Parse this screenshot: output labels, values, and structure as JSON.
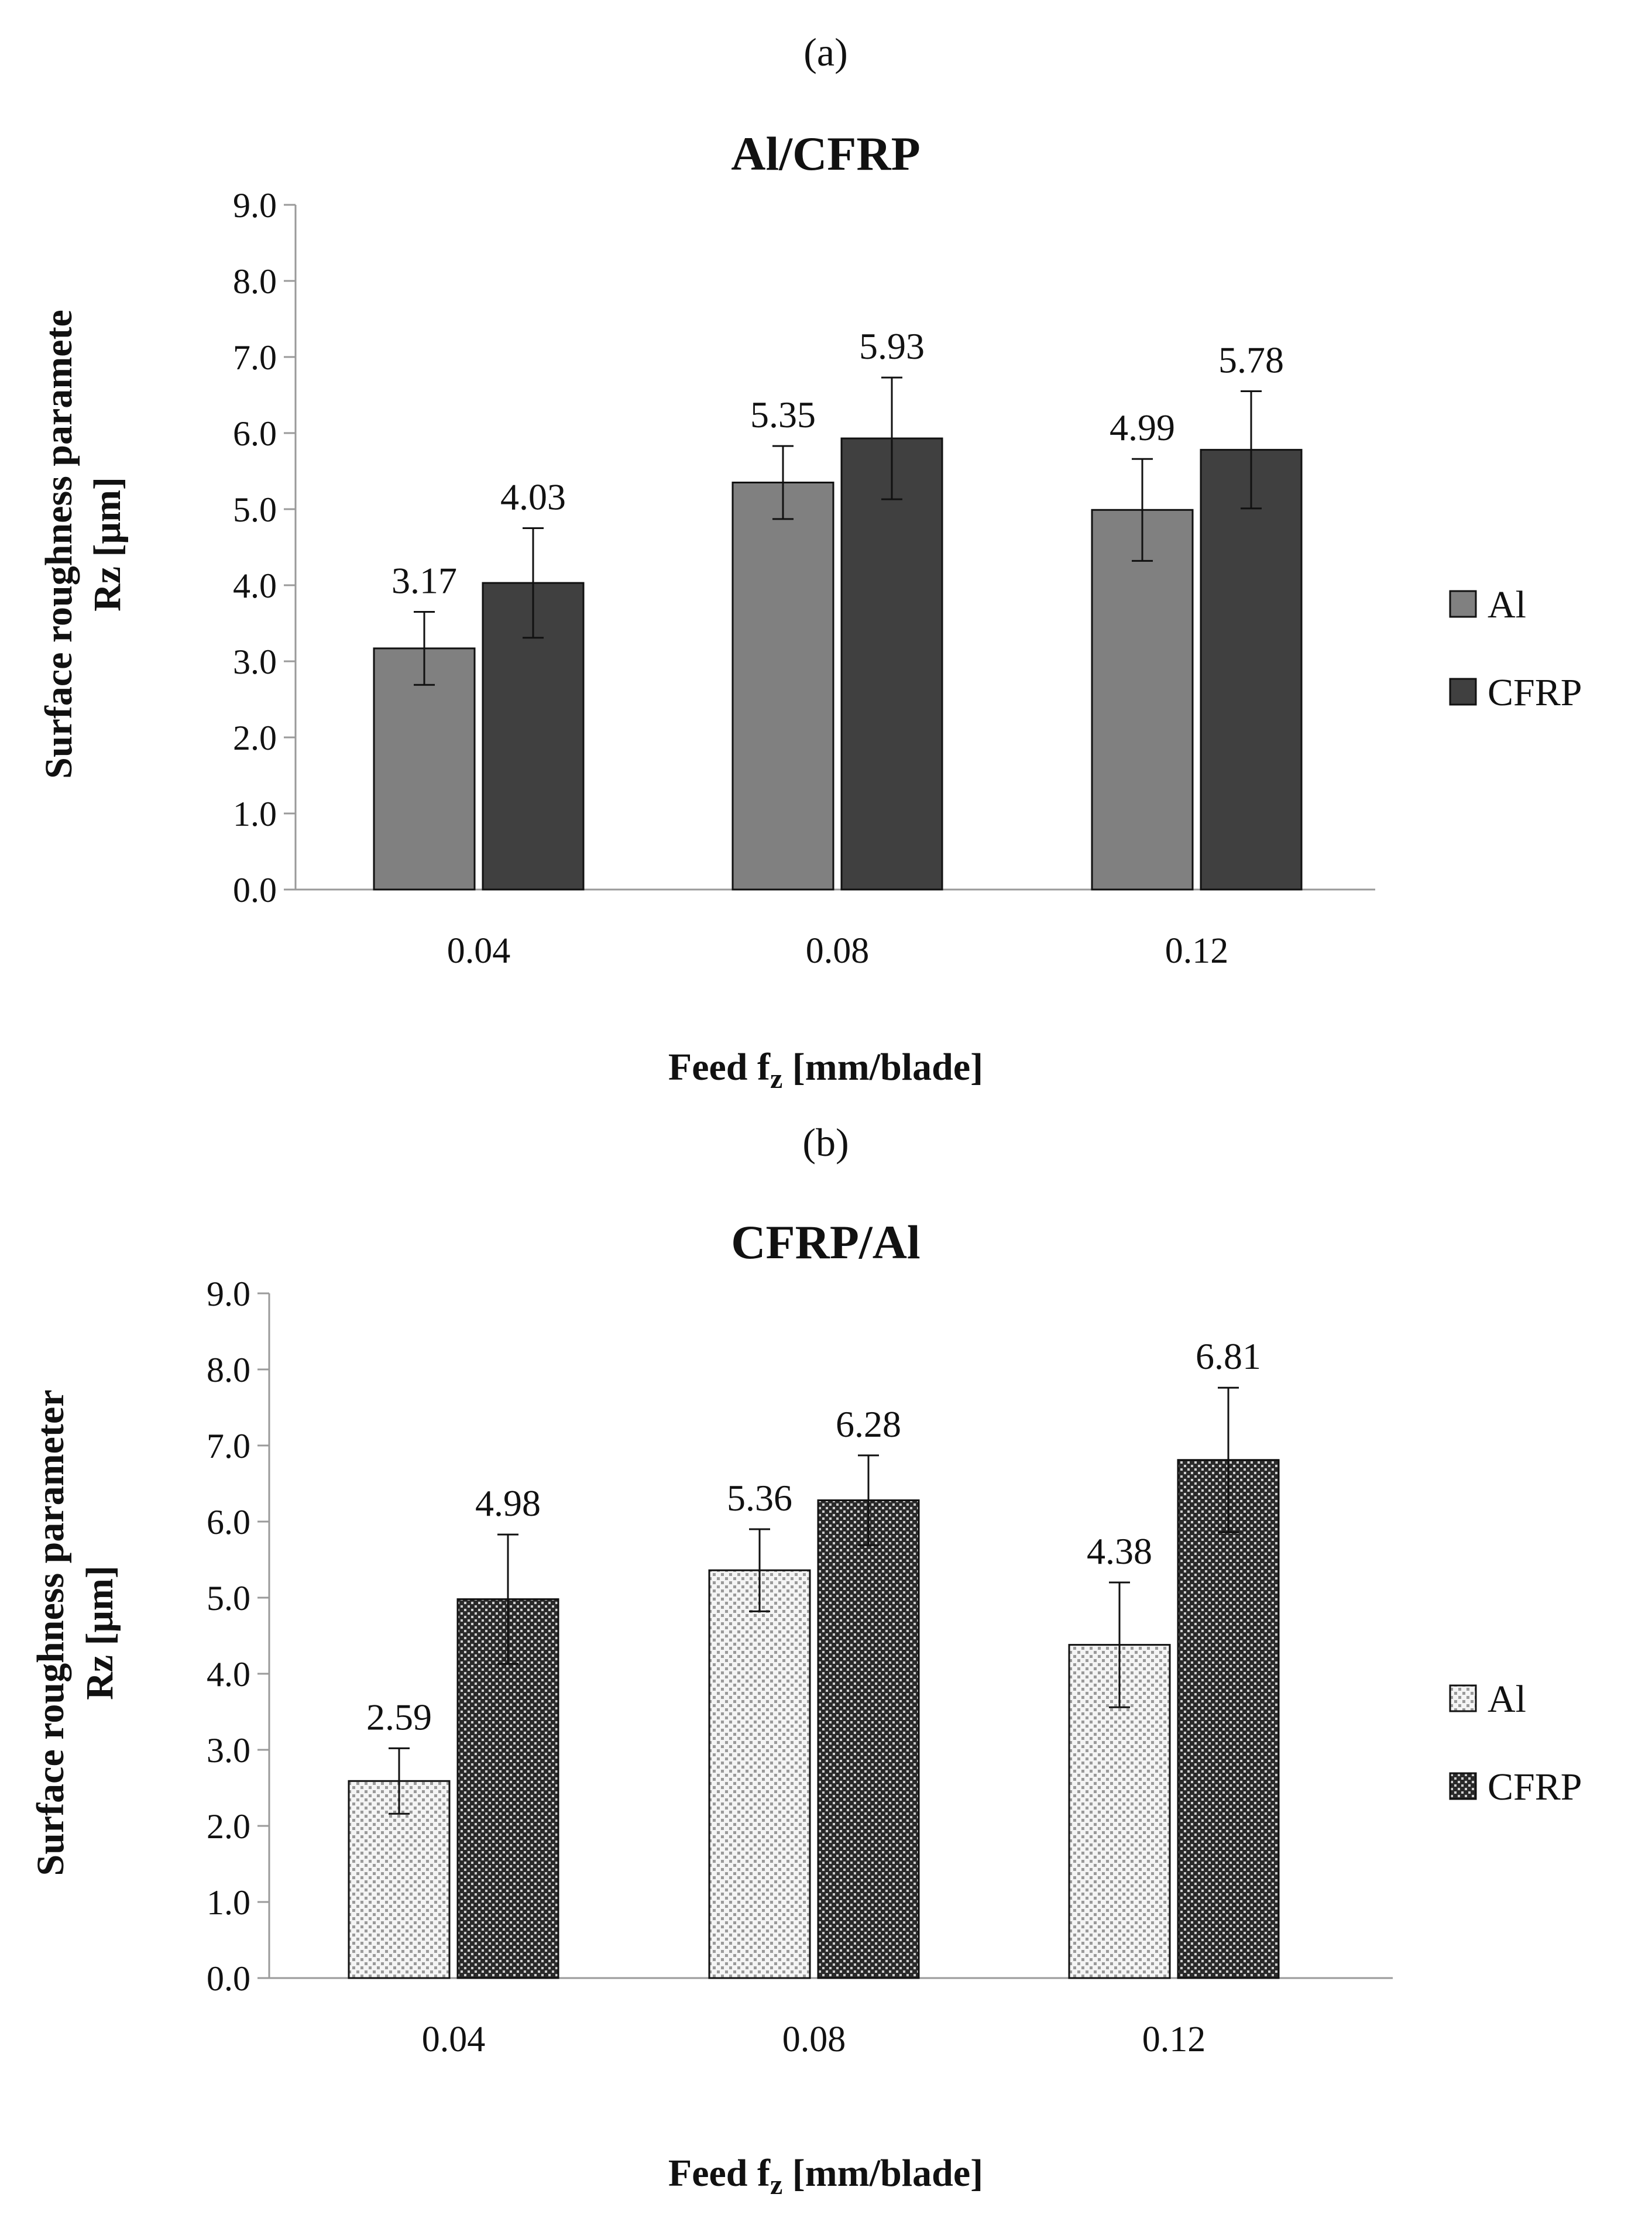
{
  "chart_data": [
    {
      "type": "bar",
      "panel_label": "(a)",
      "title": "Al/CFRP",
      "ylabel_line1": "Surface roughness paramete",
      "ylabel_line2": "Rz [μm]",
      "xlabel": "Feed f",
      "xlabel_sub": "z",
      "xlabel_rest": " [mm/blade]",
      "categories": [
        "0.04",
        "0.08",
        "0.12"
      ],
      "ylim": [
        0,
        9
      ],
      "ytick_step": 1,
      "ytick_labels": [
        "0.0",
        "1.0",
        "2.0",
        "3.0",
        "4.0",
        "5.0",
        "6.0",
        "7.0",
        "8.0",
        "9.0"
      ],
      "grid": false,
      "legend_position": "right",
      "series": [
        {
          "name": "Al",
          "values": [
            3.17,
            5.35,
            4.99
          ],
          "labels": [
            "3.17",
            "5.35",
            "4.99"
          ],
          "errors": [
            0.48,
            0.48,
            0.67
          ],
          "color": "#808080",
          "pattern": "solid"
        },
        {
          "name": "CFRP",
          "values": [
            4.03,
            5.93,
            5.78
          ],
          "labels": [
            "4.03",
            "5.93",
            "5.78"
          ],
          "errors": [
            0.72,
            0.8,
            0.77
          ],
          "color": "#404040",
          "pattern": "solid"
        }
      ]
    },
    {
      "type": "bar",
      "panel_label": "(b)",
      "title": "CFRP/Al",
      "ylabel_line1": "Surface roughness parameter",
      "ylabel_line2": "Rz [μm]",
      "xlabel": "Feed f",
      "xlabel_sub": "z",
      "xlabel_rest": " [mm/blade]",
      "categories": [
        "0.04",
        "0.08",
        "0.12"
      ],
      "ylim": [
        0,
        9
      ],
      "ytick_step": 1,
      "ytick_labels": [
        "0.0",
        "1.0",
        "2.0",
        "3.0",
        "4.0",
        "5.0",
        "6.0",
        "7.0",
        "8.0",
        "9.0"
      ],
      "grid": false,
      "legend_position": "right",
      "series": [
        {
          "name": "Al",
          "values": [
            2.59,
            5.36,
            4.38
          ],
          "labels": [
            "2.59",
            "5.36",
            "4.38"
          ],
          "errors": [
            0.43,
            0.54,
            0.82
          ],
          "color": "#ffffff",
          "pattern": "light-checker"
        },
        {
          "name": "CFRP",
          "values": [
            4.98,
            6.28,
            6.81
          ],
          "labels": [
            "4.98",
            "6.28",
            "6.81"
          ],
          "errors": [
            0.85,
            0.59,
            0.95
          ],
          "color": "#404040",
          "pattern": "dense-checker"
        }
      ]
    }
  ]
}
